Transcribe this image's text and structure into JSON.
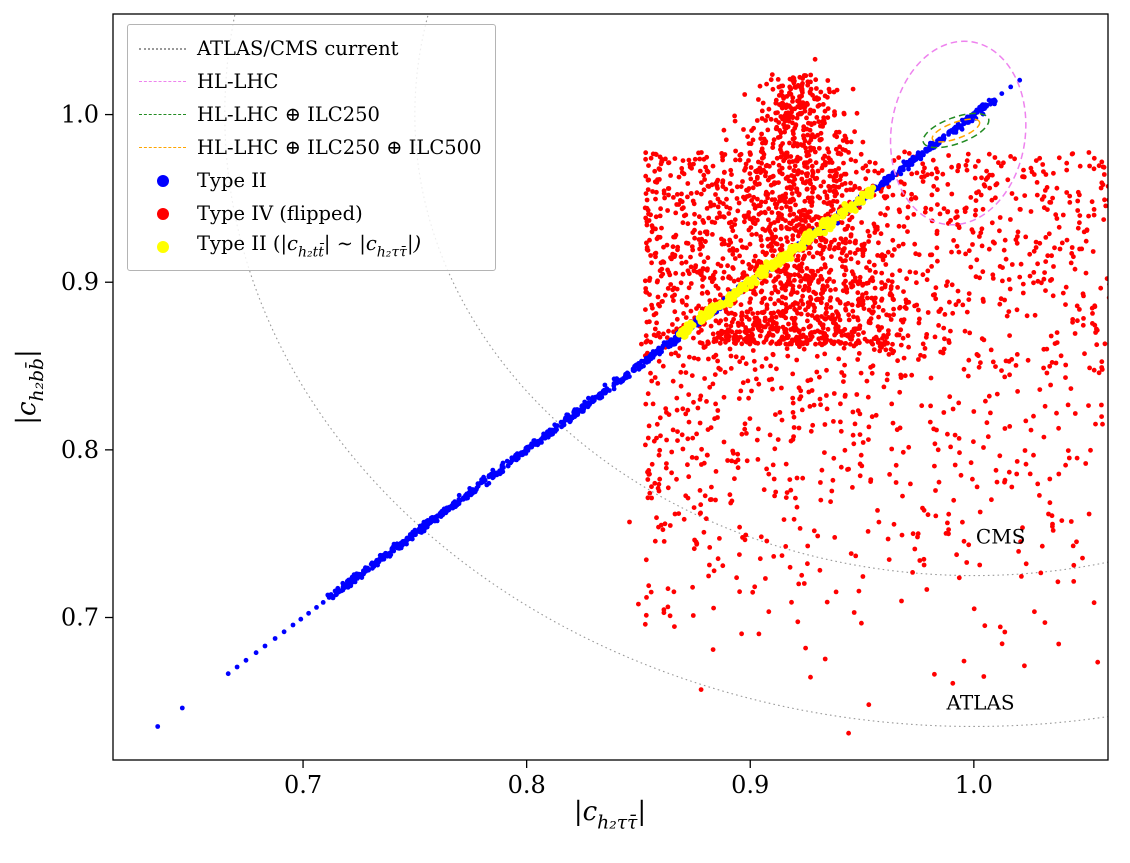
{
  "colors": {
    "blue": "#0000ff",
    "red": "#ff0000",
    "yellow": "#ffff00",
    "violet": "#ee82ee",
    "green": "#228b22",
    "orange": "#ffa500",
    "gray_dotted": "#999999",
    "background": "#ffffff",
    "axis": "#000000"
  },
  "legend": {
    "items": [
      {
        "swatch": "dotted-line",
        "color": "#999999",
        "segments": [
          {
            "t": "ATLAS/CMS current"
          }
        ]
      },
      {
        "swatch": "dashed-line",
        "color": "#ee82ee",
        "segments": [
          {
            "t": "HL-LHC"
          }
        ]
      },
      {
        "swatch": "dashed-line",
        "color": "#228b22",
        "segments": [
          {
            "t": "HL-LHC ⊕ ILC250"
          }
        ]
      },
      {
        "swatch": "dashed-line",
        "color": "#ffa500",
        "segments": [
          {
            "t": "HL-LHC ⊕ ILC250 ⊕ ILC500"
          }
        ]
      },
      {
        "swatch": "dot",
        "color": "#0000ff",
        "segments": [
          {
            "t": "Type II"
          }
        ]
      },
      {
        "swatch": "dot",
        "color": "#ff0000",
        "segments": [
          {
            "t": "Type IV (flipped)"
          }
        ]
      },
      {
        "swatch": "dot",
        "color": "#ffff00",
        "segments": [
          {
            "t": "Type II ("
          },
          {
            "t": "|c",
            "math": true
          },
          {
            "t": "h₂tt̄",
            "sub": true
          },
          {
            "t": "| ",
            "math": true
          },
          {
            "t": "∼"
          },
          {
            "t": " |c",
            "math": true
          },
          {
            "t": "h₂ττ̄",
            "sub": true
          },
          {
            "t": "|)",
            "math": true
          }
        ]
      }
    ]
  },
  "chart_data": {
    "type": "scatter",
    "title": "",
    "xlabel_segments": [
      {
        "t": "|c",
        "math": true
      },
      {
        "t": "h₂ττ̄",
        "sub": true
      },
      {
        "t": "|",
        "math": true
      }
    ],
    "ylabel_segments": [
      {
        "t": "|c",
        "math": true
      },
      {
        "t": "h₂bb̄",
        "sub": true
      },
      {
        "t": "|",
        "math": true
      }
    ],
    "xlim": [
      0.615,
      1.06
    ],
    "ylim": [
      0.615,
      1.06
    ],
    "xticks": [
      0.7,
      0.8,
      0.9,
      1.0
    ],
    "yticks": [
      0.7,
      0.8,
      0.9,
      1.0
    ],
    "grid": false,
    "legend_position": "upper left",
    "series": [
      {
        "name": "Type II",
        "kind": "diagonal",
        "color": "#0000ff",
        "marker_r": 2.4,
        "z": 2,
        "seed": 11,
        "count": 1100,
        "from": 0.7115,
        "to": 1.0085,
        "jitter": 0.0009,
        "relation": "y = x",
        "sparse_x": [
          0.635,
          0.646,
          0.6665,
          0.6705,
          0.6745,
          0.679,
          0.683,
          0.6875,
          0.6915,
          0.6955,
          0.699,
          0.7025,
          0.706,
          0.709,
          1.0125,
          1.0165,
          1.0205
        ]
      },
      {
        "name": "Type IV (flipped)",
        "kind": "cloud",
        "color": "#ff0000",
        "marker_r": 2.4,
        "z": 1,
        "seed": 20,
        "count": 2900,
        "plume": {
          "weight": 0.44,
          "x_mean": 0.921,
          "x_sigma_bottom": 0.027,
          "x_sigma_top": 0.009,
          "y_min": 0.863,
          "y_max": 1.024,
          "y_pow": 1.5
        },
        "fan": {
          "x_min": 0.853,
          "x_max": 1.066,
          "x_pow": 1.3,
          "y_min": 0.642,
          "y_max": 0.978,
          "y_pow": 0.42
        },
        "outliers": [
          [
            0.929,
            1.033
          ],
          [
            0.878,
            0.657
          ],
          [
            0.953,
            0.648
          ],
          [
            0.944,
            0.631
          ],
          [
            0.846,
            0.757
          ],
          [
            0.85,
            0.708
          ]
        ]
      },
      {
        "name": "Type II (|c_h2tt| ~ |c_h2tautau|)",
        "kind": "diagonal",
        "color": "#ffff00",
        "marker_r": 3.3,
        "z": 3,
        "seed": 5,
        "count": 230,
        "from": 0.8655,
        "to": 0.9555,
        "jitter": 0.0013,
        "relation": "y = x",
        "sparse_x": []
      }
    ],
    "confidence_contours": [
      {
        "name": "ATLAS/CMS current",
        "style": "dotted",
        "color": "#999999",
        "width": 1.1,
        "behind_points": true,
        "ellipses": [
          {
            "label": "CMS",
            "cx": 1.0,
            "cy": 1.0,
            "rx": 0.25,
            "ry": 0.275,
            "rot": 0
          },
          {
            "label": "ATLAS",
            "cx": 1.0,
            "cy": 1.0,
            "rx": 0.335,
            "ry": 0.365,
            "rot": 0
          }
        ]
      },
      {
        "name": "HL-LHC",
        "style": "dashed",
        "color": "#ee82ee",
        "width": 1.5,
        "behind_points": false,
        "ellipses": [
          {
            "cx": 0.993,
            "cy": 0.989,
            "rx": 0.03,
            "ry": 0.055,
            "rot": 8
          }
        ]
      },
      {
        "name": "HL-LHC ⊕ ILC250",
        "style": "dashed",
        "color": "#228b22",
        "width": 1.5,
        "behind_points": false,
        "ellipses": [
          {
            "cx": 0.992,
            "cy": 0.9905,
            "rx": 0.0155,
            "ry": 0.0078,
            "rot": -20
          }
        ]
      },
      {
        "name": "HL-LHC ⊕ ILC250 ⊕ ILC500",
        "style": "dashed",
        "color": "#ffa500",
        "width": 1.5,
        "behind_points": false,
        "ellipses": [
          {
            "cx": 0.992,
            "cy": 0.9905,
            "rx": 0.0112,
            "ry": 0.0048,
            "rot": -20
          }
        ]
      }
    ],
    "annotations": [
      {
        "text": "CMS",
        "x": 1.012,
        "y": 0.744,
        "font_px": 20
      },
      {
        "text": "ATLAS",
        "x": 1.003,
        "y": 0.645,
        "font_px": 20
      }
    ]
  }
}
